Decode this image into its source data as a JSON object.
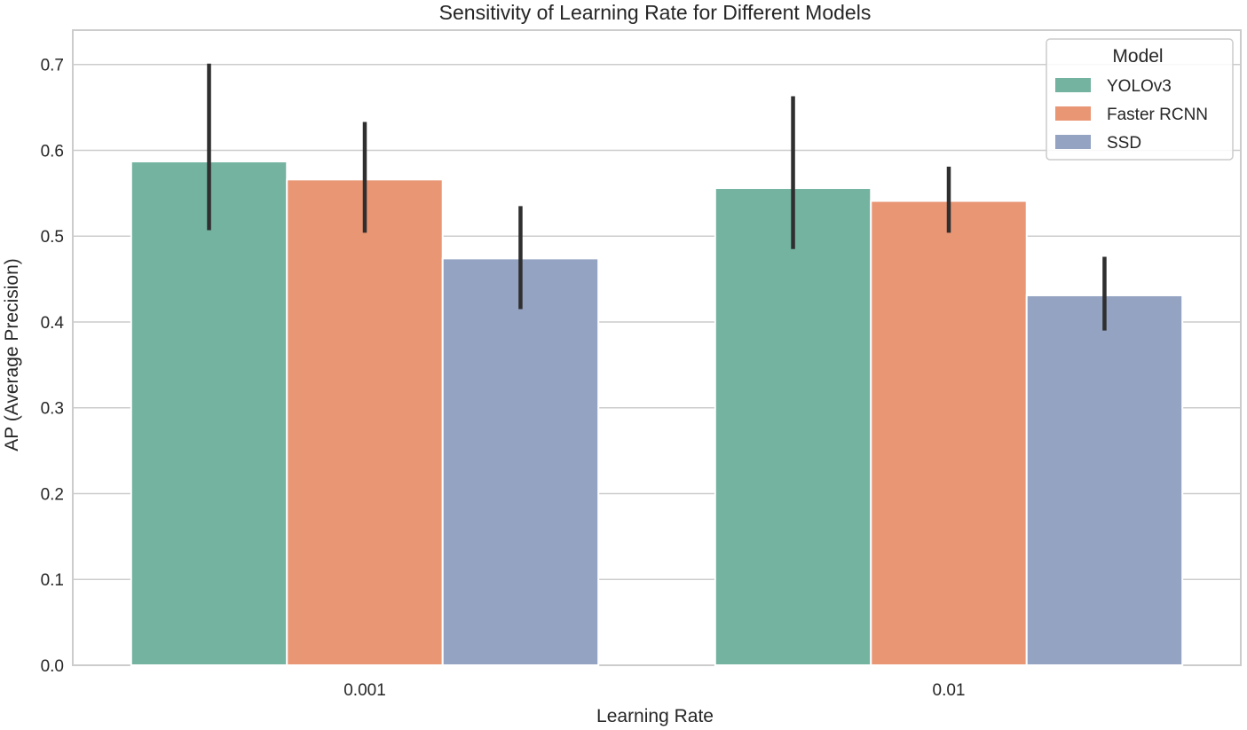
{
  "chart_data": {
    "type": "bar",
    "title": "Sensitivity of Learning Rate for Different Models",
    "xlabel": "Learning Rate",
    "ylabel": "AP (Average Precision)",
    "categories": [
      "0.001",
      "0.01"
    ],
    "ylim": [
      0,
      0.74
    ],
    "yticks": [
      0.0,
      0.1,
      0.2,
      0.3,
      0.4,
      0.5,
      0.6,
      0.7
    ],
    "ytick_labels": [
      "0.0",
      "0.1",
      "0.2",
      "0.3",
      "0.4",
      "0.5",
      "0.6",
      "0.7"
    ],
    "grid": true,
    "legend": {
      "title": "Model",
      "position": "top-right"
    },
    "series": [
      {
        "name": "YOLOv3",
        "color": "#73b3a0",
        "values": [
          0.587,
          0.556
        ],
        "err_low": [
          0.507,
          0.485
        ],
        "err_high": [
          0.701,
          0.663
        ]
      },
      {
        "name": "Faster RCNN",
        "color": "#e99675",
        "values": [
          0.566,
          0.541
        ],
        "err_low": [
          0.504,
          0.504
        ],
        "err_high": [
          0.633,
          0.581
        ]
      },
      {
        "name": "SSD",
        "color": "#95a3c3",
        "values": [
          0.474,
          0.431
        ],
        "err_low": [
          0.415,
          0.39
        ],
        "err_high": [
          0.535,
          0.476
        ]
      }
    ]
  }
}
